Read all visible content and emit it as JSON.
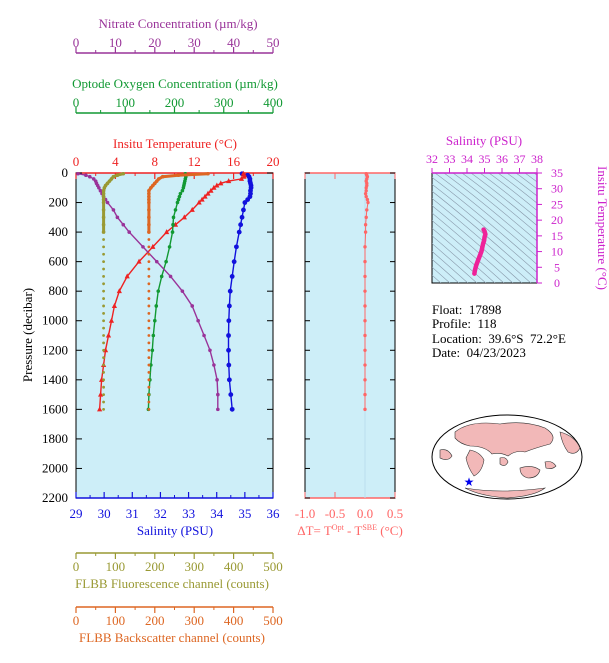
{
  "colors": {
    "nitrate": "#993399",
    "oxygen": "#119933",
    "temperature": "#ee2222",
    "salinity": "#1111dd",
    "fluorescence": "#999933",
    "backscatter": "#dd6622",
    "deltaT": "#ff6666",
    "ts_axis": "#cc22cc",
    "panel_bg": "#cdeef8"
  },
  "axes": {
    "nitrate_title": "Nitrate Concentration (µm/kg)",
    "nitrate_ticks": [
      "0",
      "10",
      "20",
      "30",
      "40",
      "50"
    ],
    "oxygen_title": "Optode Oxygen Concentration (µm/kg)",
    "oxygen_ticks": [
      "0",
      "100",
      "200",
      "300",
      "400"
    ],
    "temperature_title": "Insitu Temperature (°C)",
    "temperature_ticks": [
      "0",
      "4",
      "8",
      "12",
      "16",
      "20"
    ],
    "pressure_title": "Pressure (decibar)",
    "pressure_ticks": [
      "0",
      "200",
      "400",
      "600",
      "800",
      "1000",
      "1200",
      "1400",
      "1600",
      "1800",
      "2000",
      "2200"
    ],
    "salinity_title": "Salinity (PSU)",
    "salinity_ticks": [
      "29",
      "30",
      "31",
      "32",
      "33",
      "34",
      "35",
      "36"
    ],
    "fluorescence_title": "FLBB Fluorescence channel (counts)",
    "fluorescence_ticks": [
      "0",
      "100",
      "200",
      "300",
      "400",
      "500"
    ],
    "backscatter_title": "FLBB Backscatter channel (counts)",
    "backscatter_ticks": [
      "0",
      "100",
      "200",
      "300",
      "400",
      "500"
    ],
    "deltaT_title_main": "ΔT= T",
    "deltaT_sup1": "Opt",
    "deltaT_mid": " - T",
    "deltaT_sup2": "SBE",
    "deltaT_unit": " (°C)",
    "deltaT_ticks": [
      "-1.0",
      "-0.5",
      "0.0",
      "0.5"
    ],
    "ts_salinity_title": "Salinity (PSU)",
    "ts_salinity_ticks": [
      "32",
      "33",
      "34",
      "35",
      "36",
      "37",
      "38"
    ],
    "ts_temperature_title": "Insitu Temperature (°C)",
    "ts_temperature_ticks": [
      "0",
      "5",
      "10",
      "15",
      "20",
      "25",
      "30",
      "35"
    ]
  },
  "info": {
    "float": "Float:  17898",
    "profile": "Profile:  118",
    "location": "Location:  39.6°S  72.2°E",
    "date": "Date:  04/23/2023"
  },
  "map": {
    "marker": "float-position-marker"
  },
  "chart_data": [
    {
      "type": "line",
      "title": "",
      "ylabel": "Pressure (decibar)",
      "ylim": [
        2200,
        0
      ],
      "grid": false,
      "pressure": [
        5,
        15,
        25,
        40,
        55,
        70,
        85,
        100,
        120,
        140,
        160,
        180,
        200,
        250,
        300,
        350,
        400,
        500,
        600,
        700,
        800,
        900,
        1000,
        1100,
        1200,
        1300,
        1400,
        1500,
        1600
      ],
      "series": [
        {
          "name": "Salinity (PSU)",
          "xlim": [
            29,
            36
          ],
          "values": [
            34.9,
            35.1,
            35.15,
            35.18,
            35.18,
            35.2,
            35.22,
            35.22,
            35.2,
            35.2,
            35.18,
            35.1,
            35.0,
            34.95,
            34.9,
            34.85,
            34.8,
            34.7,
            34.62,
            34.55,
            34.48,
            34.45,
            34.43,
            34.42,
            34.42,
            34.43,
            34.45,
            34.5,
            34.55
          ]
        },
        {
          "name": "Insitu Temperature (°C)",
          "xlim": [
            0,
            20
          ],
          "values": [
            17.0,
            17.1,
            17.05,
            16.8,
            15.5,
            14.7,
            14.3,
            14.0,
            13.7,
            13.4,
            13.1,
            12.8,
            12.5,
            11.8,
            11.0,
            10.1,
            9.2,
            7.8,
            6.4,
            5.2,
            4.4,
            3.9,
            3.6,
            3.3,
            3.0,
            2.8,
            2.6,
            2.5,
            2.4
          ]
        },
        {
          "name": "Optode Oxygen Concentration (µm/kg)",
          "xlim": [
            0,
            400
          ],
          "values": [
            222,
            223,
            223,
            222,
            221,
            220,
            219,
            218,
            216,
            212,
            210,
            208,
            206,
            202,
            198,
            197,
            196,
            190,
            183,
            174,
            167,
            163,
            160,
            157,
            155,
            152,
            150,
            148,
            147
          ]
        },
        {
          "name": "Nitrate Concentration (µm/kg)",
          "xlim": [
            0,
            50
          ],
          "values": [
            0.5,
            2.5,
            3.5,
            4.5,
            5.0,
            5.2,
            5.5,
            5.8,
            6.2,
            6.6,
            7.0,
            7.5,
            8.0,
            9.5,
            10.5,
            12.0,
            13.5,
            17.0,
            20.5,
            24.0,
            27.0,
            29.5,
            31.0,
            32.5,
            34.0,
            35.0,
            35.8,
            36.0,
            36.0
          ]
        },
        {
          "name": "FLBB Fluorescence channel (counts)",
          "xlim": [
            0,
            500
          ],
          "values": [
            120,
            105,
            95,
            90,
            85,
            80,
            75,
            72,
            70,
            70,
            70,
            70,
            70,
            70,
            70,
            70,
            70,
            70,
            70,
            70,
            70,
            70,
            70,
            70,
            70,
            70,
            70,
            70,
            70
          ]
        },
        {
          "name": "FLBB Backscatter channel (counts)",
          "xlim": [
            0,
            500
          ],
          "values": [
            335,
            260,
            220,
            210,
            205,
            200,
            195,
            190,
            185,
            185,
            185,
            185,
            185,
            185,
            185,
            185,
            185,
            185,
            185,
            185,
            185,
            185,
            185,
            185,
            185,
            185,
            185,
            185,
            185
          ]
        }
      ]
    },
    {
      "type": "scatter",
      "title": "",
      "xlabel": "ΔT= TOpt - TSBE (°C)",
      "ylabel": "",
      "xlim": [
        -1.0,
        0.5
      ],
      "ylim": [
        2200,
        0
      ],
      "pressure": [
        5,
        15,
        25,
        40,
        55,
        70,
        85,
        100,
        120,
        140,
        160,
        180,
        200,
        250,
        300,
        350,
        400,
        500,
        600,
        700,
        800,
        900,
        1000,
        1100,
        1200,
        1300,
        1400,
        1500,
        1600
      ],
      "values": [
        0.02,
        0.03,
        0.04,
        0.03,
        0.02,
        0.03,
        0.03,
        0.02,
        0.02,
        0.01,
        0.02,
        0.04,
        0.05,
        0.03,
        0.02,
        0.01,
        0.01,
        0.0,
        0.0,
        0.0,
        0.0,
        0.0,
        0.0,
        0.0,
        0.0,
        0.0,
        0.0,
        0.0,
        0.0
      ]
    },
    {
      "type": "line",
      "title": "",
      "xlabel": "Salinity (PSU)",
      "ylabel": "Insitu Temperature (°C)",
      "xlim": [
        32,
        38
      ],
      "ylim": [
        0,
        35
      ],
      "series": [
        {
          "name": "",
          "x": [
            34.42,
            34.45,
            34.52,
            34.62,
            34.72,
            34.82,
            34.88,
            34.92,
            34.98,
            35.0,
            35.05,
            35.0,
            34.95
          ],
          "y": [
            3.0,
            4.0,
            5.5,
            7.0,
            8.5,
            10.0,
            11.5,
            12.5,
            13.5,
            14.5,
            15.5,
            16.5,
            17.0
          ]
        }
      ]
    }
  ]
}
